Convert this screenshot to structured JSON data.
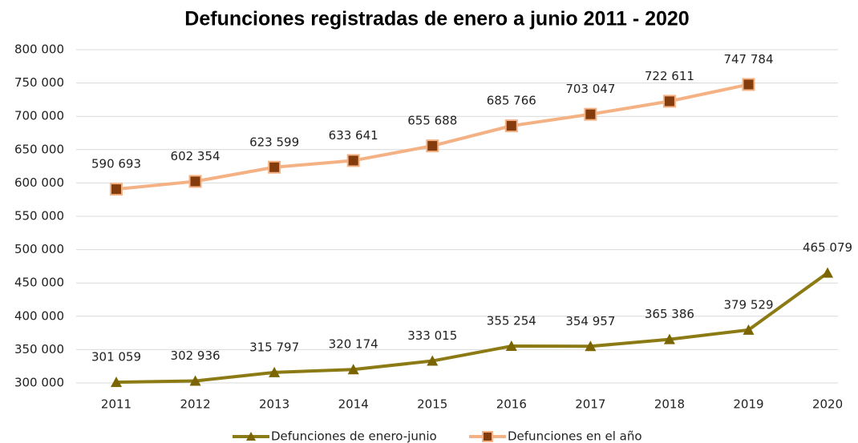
{
  "chart_data": {
    "type": "line",
    "title": "Defunciones registradas de enero a junio 2011 - 2020",
    "categories": [
      "2011",
      "2012",
      "2013",
      "2014",
      "2015",
      "2016",
      "2017",
      "2018",
      "2019",
      "2020"
    ],
    "series": [
      {
        "name": "Defunciones de enero-junio",
        "color": "#8c7a14",
        "marker": "triangle",
        "marker_color": "#7a6500",
        "values": [
          301059,
          302936,
          315797,
          320174,
          333015,
          355254,
          354957,
          365386,
          379529,
          465079
        ],
        "value_labels": [
          "301 059",
          "302 936",
          "315 797",
          "320 174",
          "333 015",
          "355 254",
          "354 957",
          "365 386",
          "379 529",
          "465 079"
        ]
      },
      {
        "name": "Defunciones en el año",
        "color": "#f4b183",
        "marker": "square",
        "marker_color": "#843c0c",
        "values": [
          590693,
          602354,
          623599,
          633641,
          655688,
          685766,
          703047,
          722611,
          747784,
          null
        ],
        "value_labels": [
          "590 693",
          "602 354",
          "623 599",
          "633 641",
          "655 688",
          "685 766",
          "703 047",
          "722 611",
          "747 784",
          null
        ]
      }
    ],
    "ylim": [
      300000,
      800000
    ],
    "yticks": [
      {
        "value": 300000,
        "label": "300 000"
      },
      {
        "value": 350000,
        "label": "350 000"
      },
      {
        "value": 400000,
        "label": "400 000"
      },
      {
        "value": 450000,
        "label": "450 000"
      },
      {
        "value": 500000,
        "label": "500 000"
      },
      {
        "value": 550000,
        "label": "550 000"
      },
      {
        "value": 600000,
        "label": "600 000"
      },
      {
        "value": 650000,
        "label": "650 000"
      },
      {
        "value": 700000,
        "label": "700 000"
      },
      {
        "value": 750000,
        "label": "750 000"
      },
      {
        "value": 800000,
        "label": "800 000"
      }
    ],
    "grid": true,
    "legend": "bottom"
  }
}
